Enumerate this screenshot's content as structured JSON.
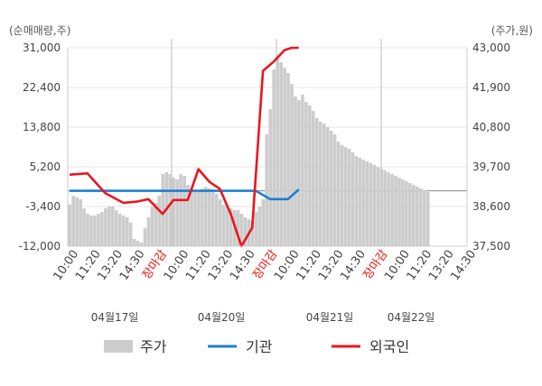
{
  "chart_data": {
    "type": "line",
    "left_axis_unit": "(순매매량,주)",
    "right_axis_unit": "(주가,원)",
    "left_axis": {
      "ylim": [
        -12000,
        31000
      ],
      "ticks": [
        "31,000",
        "22,400",
        "13,800",
        "5,200",
        "-3,400",
        "-12,000"
      ],
      "tick_values": [
        31000,
        22400,
        13800,
        5200,
        -3400,
        -12000
      ]
    },
    "right_axis": {
      "ylim": [
        37500,
        43000
      ],
      "ticks": [
        "43,000",
        "41,900",
        "40,800",
        "39,700",
        "38,600",
        "37,500"
      ],
      "tick_values": [
        43000,
        41900,
        40800,
        39700,
        38600,
        37500
      ]
    },
    "x_ticks": [
      "10:00",
      "11:20",
      "13:20",
      "14:30",
      "장마감",
      "10:00",
      "11:20",
      "13:20",
      "14:30",
      "장마감",
      "10:00",
      "11:20",
      "13:20",
      "14:30",
      "장마감",
      "10:00",
      "11:20",
      "13:20",
      "14:30"
    ],
    "x_tick_highlight": [
      "장마감"
    ],
    "dates": [
      "04월17일",
      "04월20일",
      "04월21일",
      "04월22일"
    ],
    "grid": true,
    "legend_position": "bottom",
    "series": [
      {
        "name": "주가",
        "kind": "area",
        "axis": "right",
        "color": "#cccccc",
        "x": [
          0,
          1,
          2,
          3,
          4,
          5,
          6,
          7,
          8,
          9,
          10,
          11,
          12,
          13,
          14,
          15,
          16,
          17,
          18,
          19,
          20,
          21,
          22,
          23,
          24,
          25,
          26,
          27,
          28,
          29,
          30,
          31,
          32,
          33,
          34,
          35,
          36,
          37,
          38,
          39,
          40,
          41,
          42,
          43,
          44,
          45,
          46,
          47,
          48,
          49,
          50,
          51,
          52,
          53,
          54,
          55,
          56,
          57,
          58,
          59,
          60,
          61,
          62,
          63,
          64,
          65,
          66,
          67,
          68,
          69,
          70,
          71,
          72,
          73,
          74,
          75,
          76,
          77,
          78,
          79,
          80,
          81,
          82,
          83,
          84,
          85,
          86,
          87,
          88,
          89,
          90,
          91,
          92,
          93,
          94,
          95,
          96,
          97,
          98,
          99,
          100
        ],
        "values": [
          38650,
          38900,
          38850,
          38800,
          38550,
          38400,
          38350,
          38350,
          38400,
          38450,
          38550,
          38600,
          38600,
          38500,
          38400,
          38350,
          38300,
          38150,
          37700,
          37650,
          37600,
          38000,
          38300,
          38600,
          38700,
          38900,
          39500,
          39550,
          39500,
          39400,
          39350,
          39500,
          39450,
          39200,
          39100,
          39000,
          39000,
          39100,
          39150,
          39100,
          39050,
          38950,
          38800,
          38650,
          38600,
          38550,
          38500,
          38500,
          38400,
          38300,
          38250,
          38200,
          38450,
          38600,
          38800,
          40600,
          41300,
          42400,
          42800,
          42600,
          42450,
          42300,
          42000,
          41650,
          41550,
          41700,
          41500,
          41400,
          41250,
          41050,
          40950,
          40900,
          40800,
          40700,
          40600,
          40400,
          40300,
          40250,
          40200,
          40100,
          40000,
          39950,
          39900,
          39850,
          39800,
          39750,
          39700,
          39650,
          39600,
          39550,
          39500,
          39450,
          39400,
          39350,
          39300,
          39250,
          39200,
          39150,
          39100,
          39050,
          39000
        ]
      },
      {
        "name": "기관",
        "kind": "line",
        "axis": "left",
        "color": "#1e7fcf",
        "x": [
          0,
          13,
          26,
          40,
          52,
          56,
          58,
          61,
          64
        ],
        "values": [
          0,
          0,
          0,
          0,
          0,
          -1800,
          -1800,
          -1800,
          300
        ]
      },
      {
        "name": "외국인",
        "kind": "line",
        "axis": "left",
        "color": "#e8171f",
        "x": [
          0,
          5,
          10,
          15,
          19,
          22,
          26,
          29,
          33,
          36,
          39,
          42,
          45,
          48,
          51,
          54,
          57,
          60,
          62,
          64
        ],
        "values": [
          3500,
          3800,
          -500,
          -2600,
          -2300,
          -1800,
          -5000,
          -2000,
          -2000,
          4700,
          2000,
          400,
          -5000,
          -12000,
          -8000,
          26000,
          28000,
          30500,
          31000,
          31000
        ]
      }
    ]
  }
}
